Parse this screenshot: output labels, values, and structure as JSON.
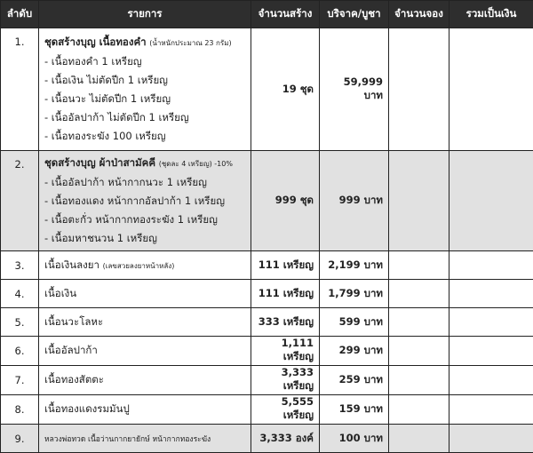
{
  "headers": [
    "ลำดับ",
    "รายการ",
    "จำนวนสร้าง",
    "บริจาค/บูชา",
    "จำนวนจอง",
    "รวมเป็นเงิน"
  ],
  "rows": [
    {
      "no": "1.",
      "title": "ชุดสร้างบุญ เนื้อทองคำ",
      "note": "(น้ำหนักประมาณ 23 กรัม)",
      "items": [
        "- เนื้อทองคำ 1 เหรียญ",
        "- เนื้อเงิน ไม่ตัดปีก 1 เหรียญ",
        "- เนื้อนวะ ไม่ตัดปีก 1 เหรียญ",
        "- เนื้ออัลปาก้า ไม่ตัดปีก 1 เหรียญ",
        "- เนื้อทองระฆัง 100 เหรียญ"
      ],
      "qty": "19 ชุด",
      "price": "59,999 บาท"
    },
    {
      "no": "2.",
      "title": "ชุดสร้างบุญ ผ้าป่าสามัคคี",
      "note": "(ชุดละ 4 เหรียญ) -10%",
      "items": [
        "- เนื้ออัลปาก้า หน้ากากนวะ 1 เหรียญ",
        "- เนื้อทองแดง หน้ากากอัลปาก้า 1 เหรียญ",
        "- เนื้อตะกั่ว หน้ากากทองระฆัง 1 เหรียญ",
        "- เนื้อมหาชนวน 1 เหรียญ"
      ],
      "qty": "999 ชุด",
      "price": "999 บาท"
    },
    {
      "no": "3.",
      "name": "เนื้อเงินลงยา",
      "note": "(เลขสวยลงยาหน้าหลัง)",
      "qty": "111 เหรียญ",
      "price": "2,199 บาท"
    },
    {
      "no": "4.",
      "name": "เนื้อเงิน",
      "qty": "111 เหรียญ",
      "price": "1,799 บาท"
    },
    {
      "no": "5.",
      "name": "เนื้อนวะโลหะ",
      "qty": "333 เหรียญ",
      "price": "599 บาท"
    },
    {
      "no": "6.",
      "name": "เนื้ออัลปาก้า",
      "qty": "1,111 เหรียญ",
      "price": "299 บาท"
    },
    {
      "no": "7.",
      "name": "เนื้อทองสัตตะ",
      "qty": "3,333 เหรียญ",
      "price": "259 บาท"
    },
    {
      "no": "8.",
      "name": "เนื้อทองแดงรมมันปู",
      "qty": "5,555 เหรียญ",
      "price": "159 บาท"
    },
    {
      "no": "9.",
      "name": "หลวงพ่อทวด เนื้อว่านกากยายักษ์ หน้ากากทองระฆัง",
      "qty": "3,333 องค์",
      "price": "100 บาท"
    }
  ]
}
